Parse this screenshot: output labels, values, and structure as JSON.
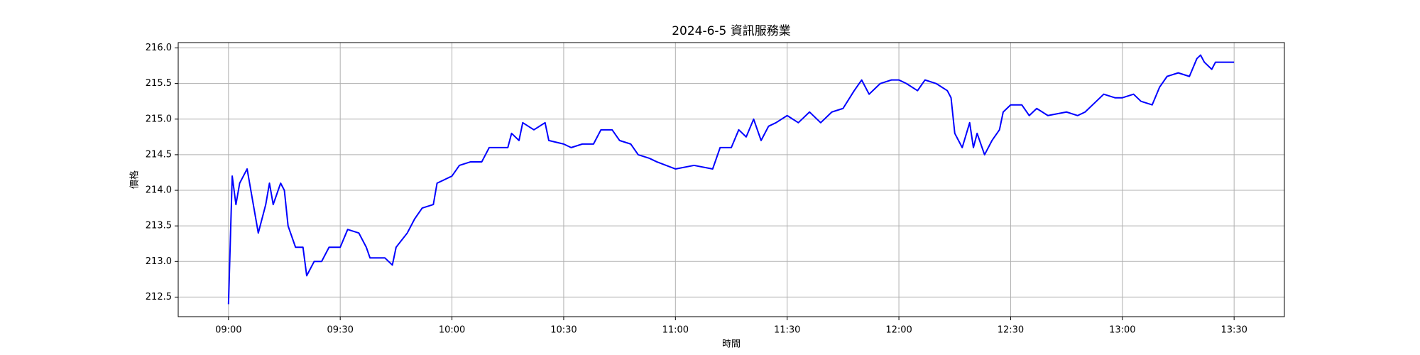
{
  "chart_data": {
    "type": "line",
    "title": "2024-6-5 資訊服務業",
    "x_label": "時間",
    "y_label": "價格",
    "x": [
      "09:00",
      "09:01",
      "09:02",
      "09:03",
      "09:05",
      "09:06",
      "09:08",
      "09:10",
      "09:11",
      "09:12",
      "09:14",
      "09:15",
      "09:16",
      "09:18",
      "09:20",
      "09:21",
      "09:23",
      "09:25",
      "09:27",
      "09:30",
      "09:32",
      "09:35",
      "09:37",
      "09:38",
      "09:42",
      "09:44",
      "09:45",
      "09:48",
      "09:50",
      "09:52",
      "09:55",
      "09:56",
      "09:58",
      "10:00",
      "10:02",
      "10:05",
      "10:08",
      "10:10",
      "10:15",
      "10:16",
      "10:18",
      "10:19",
      "10:22",
      "10:25",
      "10:26",
      "10:30",
      "10:32",
      "10:35",
      "10:38",
      "10:40",
      "10:43",
      "10:45",
      "10:48",
      "10:50",
      "10:53",
      "10:55",
      "11:00",
      "11:05",
      "11:10",
      "11:12",
      "11:15",
      "11:17",
      "11:19",
      "11:21",
      "11:23",
      "11:25",
      "11:27",
      "11:30",
      "11:33",
      "11:36",
      "11:39",
      "11:42",
      "11:45",
      "11:48",
      "11:50",
      "11:52",
      "11:55",
      "11:58",
      "12:00",
      "12:02",
      "12:05",
      "12:07",
      "12:10",
      "12:13",
      "12:14",
      "12:15",
      "12:17",
      "12:19",
      "12:20",
      "12:21",
      "12:23",
      "12:25",
      "12:27",
      "12:28",
      "12:30",
      "12:33",
      "12:35",
      "12:37",
      "12:40",
      "12:45",
      "12:48",
      "12:50",
      "12:53",
      "12:55",
      "12:58",
      "13:00",
      "13:03",
      "13:05",
      "13:08",
      "13:10",
      "13:12",
      "13:15",
      "13:18",
      "13:20",
      "13:21",
      "13:22",
      "13:24",
      "13:25",
      "13:30"
    ],
    "series": [
      {
        "color": "#0000ff",
        "values": [
          212.4,
          214.2,
          213.8,
          214.1,
          214.3,
          214.0,
          213.4,
          213.8,
          214.1,
          213.8,
          214.1,
          214.0,
          213.5,
          213.2,
          213.2,
          212.8,
          213.0,
          213.0,
          213.2,
          213.2,
          213.45,
          213.4,
          213.2,
          213.05,
          213.05,
          212.95,
          213.2,
          213.4,
          213.6,
          213.75,
          213.8,
          214.1,
          214.15,
          214.2,
          214.35,
          214.4,
          214.4,
          214.6,
          214.6,
          214.8,
          214.7,
          214.95,
          214.85,
          214.95,
          214.7,
          214.65,
          214.6,
          214.65,
          214.65,
          214.85,
          214.85,
          214.7,
          214.65,
          214.5,
          214.45,
          214.4,
          214.3,
          214.35,
          214.3,
          214.6,
          214.6,
          214.85,
          214.75,
          215.0,
          214.7,
          214.9,
          214.95,
          215.05,
          214.95,
          215.1,
          214.95,
          215.1,
          215.15,
          215.4,
          215.55,
          215.35,
          215.5,
          215.55,
          215.55,
          215.5,
          215.4,
          215.55,
          215.5,
          215.4,
          215.3,
          214.8,
          214.6,
          214.95,
          214.6,
          214.8,
          214.5,
          214.7,
          214.85,
          215.1,
          215.2,
          215.2,
          215.05,
          215.15,
          215.05,
          215.1,
          215.05,
          215.1,
          215.25,
          215.35,
          215.3,
          215.3,
          215.35,
          215.25,
          215.2,
          215.45,
          215.6,
          215.65,
          215.6,
          215.85,
          215.9,
          215.8,
          215.7,
          215.8,
          215.8
        ]
      }
    ],
    "xlim": [
      "08:46:30",
      "13:43:30"
    ],
    "xticks": [
      "09:00",
      "09:30",
      "10:00",
      "10:30",
      "11:00",
      "11:30",
      "12:00",
      "12:30",
      "13:00",
      "13:30"
    ],
    "ylim": [
      212.225,
      216.075
    ],
    "yticks": [
      212.5,
      {
        "value": 213,
        "label": "213.0"
      },
      213.5,
      {
        "value": 214,
        "label": "214.0"
      },
      214.5,
      {
        "value": 215,
        "label": "215.0"
      },
      215.5,
      {
        "value": 216,
        "label": "216.0"
      }
    ],
    "grid": true
  }
}
